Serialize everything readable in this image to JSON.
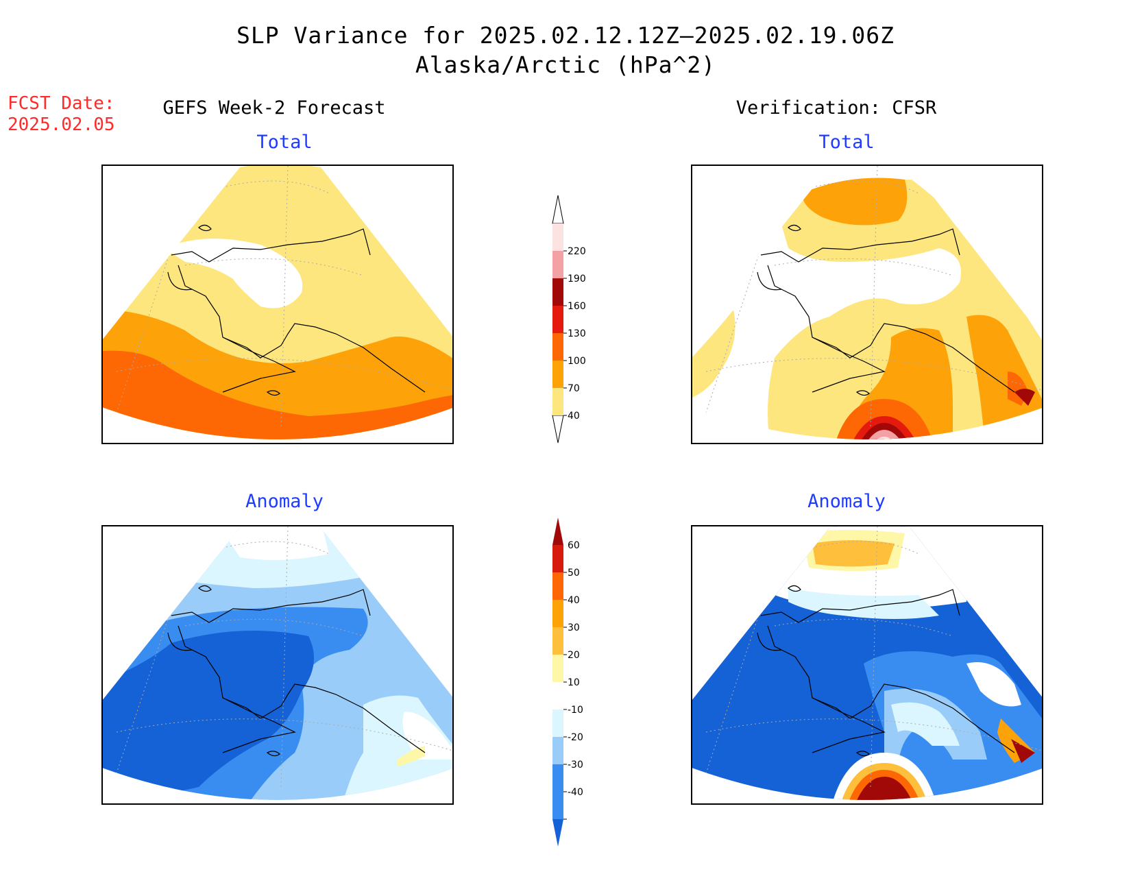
{
  "title": "SLP Variance for 2025.02.12.12Z–2025.02.19.06Z",
  "subtitle": "Alaska/Arctic (hPa^2)",
  "fcst_date_label": "FCST Date:",
  "fcst_date_value": "2025.02.05",
  "left_column_header": "GEFS Week-2 Forecast",
  "right_column_header": "Verification: CFSR",
  "panels": {
    "forecast_total": {
      "label": "Total"
    },
    "verification_total": {
      "label": "Total"
    },
    "forecast_anomaly": {
      "label": "Anomaly"
    },
    "verification_anomaly": {
      "label": "Anomaly"
    }
  },
  "total_colorbar": {
    "levels": [
      {
        "label": "40",
        "color": "#fde67e"
      },
      {
        "label": "70",
        "color": "#fda208"
      },
      {
        "label": "100",
        "color": "#fd6805"
      },
      {
        "label": "130",
        "color": "#e31a0d"
      },
      {
        "label": "160",
        "color": "#a10808"
      },
      {
        "label": "190",
        "color": "#f4a1a5"
      },
      {
        "label": "220",
        "color": "#fde2e2"
      }
    ]
  },
  "anomaly_colorbar": {
    "levels": [
      {
        "label": "-40",
        "color": "#1561d6"
      },
      {
        "label": "-30",
        "color": "#3a8df0"
      },
      {
        "label": "-20",
        "color": "#99ccf8"
      },
      {
        "label": "-10",
        "color": "#dbf6ff"
      },
      {
        "label": "10",
        "color": "#ffffff"
      },
      {
        "label": "20",
        "color": "#fff7a8"
      },
      {
        "label": "30",
        "color": "#fdbf3c"
      },
      {
        "label": "40",
        "color": "#fda208"
      },
      {
        "label": "50",
        "color": "#fd6805"
      },
      {
        "label": "60",
        "color": "#d81a0d"
      }
    ],
    "top_color": "#a10808"
  }
}
